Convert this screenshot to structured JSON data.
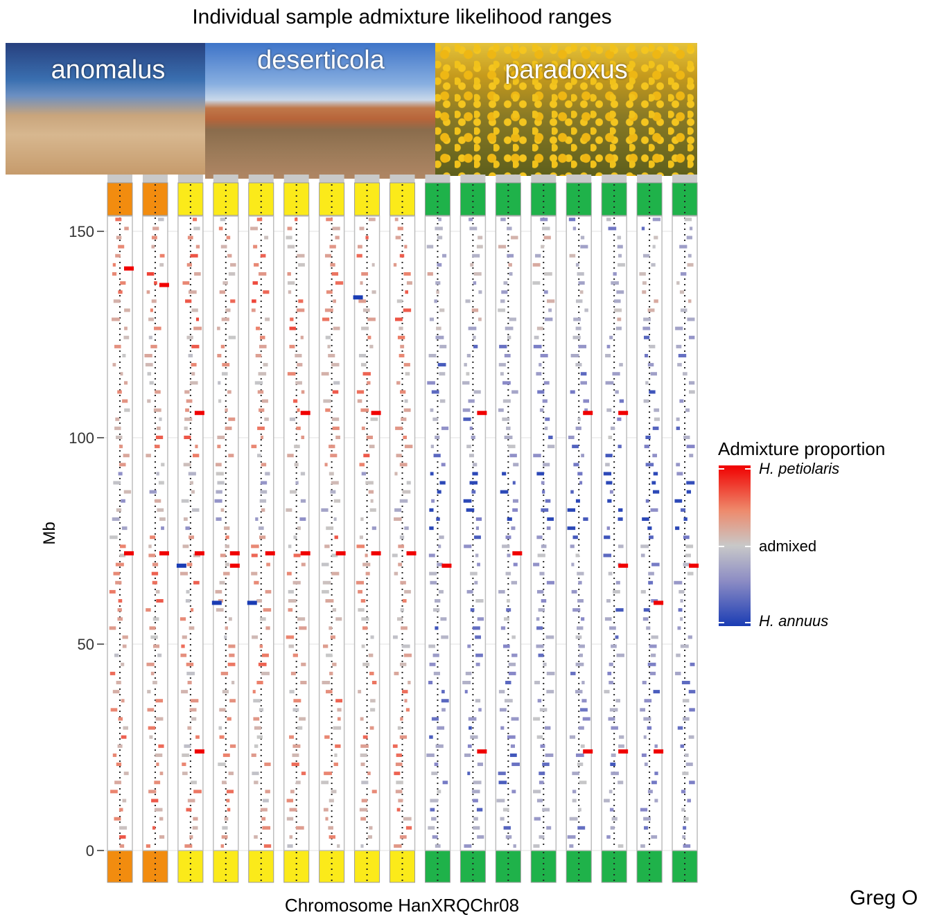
{
  "chart_data": {
    "type": "heatmap",
    "title": "Individual sample admixture likelihood ranges",
    "xlabel": "Chromosome  HanXRQChr08",
    "ylabel": "Mb",
    "ylim": [
      0,
      155
    ],
    "yticks": [
      0,
      50,
      100,
      150
    ],
    "grid": true,
    "legend": {
      "title": "Admixture proportion",
      "placement": "right",
      "labels": [
        "H. petiolaris",
        "admixed",
        "H. annuus"
      ],
      "colors": [
        "#f00000",
        "#c8c8c8",
        "#1a3cb4"
      ]
    },
    "groups": [
      {
        "name": "anomalus",
        "color": "#f28c0f",
        "count": 2
      },
      {
        "name": "deserticola",
        "color": "#fbea1a",
        "count": 7
      },
      {
        "name": "paradoxus",
        "color": "#1fb24a",
        "count": 8
      }
    ],
    "strong_petiolaris_mb": [
      [
        141,
        72
      ],
      [
        137,
        72
      ],
      [
        106,
        72,
        24
      ],
      [
        69,
        72
      ],
      [
        72
      ],
      [
        106,
        72
      ],
      [
        72
      ],
      [
        106,
        72
      ],
      [
        72
      ],
      [
        69
      ],
      [
        106,
        24
      ],
      [
        72
      ],
      [],
      [
        106,
        24
      ],
      [
        106,
        69,
        24
      ],
      [
        60,
        24
      ],
      [
        69
      ]
    ],
    "strong_annuus_mb": [
      [],
      [],
      [
        69
      ],
      [
        60
      ],
      [
        60
      ],
      [],
      [],
      [
        134
      ],
      [],
      [],
      [],
      [],
      [],
      [],
      [],
      [],
      []
    ]
  },
  "photos": {
    "anomalus": "anomalus",
    "deserticola": "deserticola",
    "paradoxus": "paradoxus"
  },
  "credit": "Greg O"
}
